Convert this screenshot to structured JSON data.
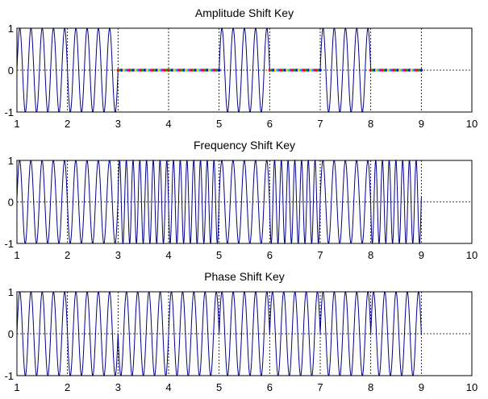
{
  "chart_data": [
    {
      "type": "line",
      "title": "Amplitude Shift Key",
      "xlim": [
        1,
        10
      ],
      "ylim": [
        -1,
        1
      ],
      "xticks": [
        "1",
        "2",
        "3",
        "4",
        "5",
        "6",
        "7",
        "8",
        "9",
        "10"
      ],
      "yticks": [
        "-1",
        "0",
        "1"
      ],
      "grid": true,
      "bits": [
        1,
        1,
        0,
        0,
        1,
        0,
        1,
        0
      ],
      "carrier": {
        "base_cycles_per_unit": 4.5
      },
      "signal_end": 9,
      "series": [
        {
          "color": "#00008b"
        }
      ],
      "zero_segment_colors": [
        "#ff0000",
        "#00aa00",
        "#0000ff",
        "#ffcc00",
        "#00cccc",
        "#cc00cc"
      ]
    },
    {
      "type": "line",
      "title": "Frequency Shift Key",
      "xlim": [
        1,
        10
      ],
      "ylim": [
        -1,
        1
      ],
      "xticks": [
        "1",
        "2",
        "3",
        "4",
        "5",
        "6",
        "7",
        "8",
        "9",
        "10"
      ],
      "yticks": [
        "-1",
        "0",
        "1"
      ],
      "grid": true,
      "bits": [
        1,
        1,
        0,
        0,
        1,
        0,
        1,
        0
      ],
      "carrier": {
        "cycles_per_unit_bit1": 4.5,
        "cycles_per_unit_bit0": 7.5
      },
      "signal_end": 9,
      "series": [
        {
          "color": "#00008b"
        }
      ]
    },
    {
      "type": "line",
      "title": "Phase Shift Key",
      "xlim": [
        1,
        10
      ],
      "ylim": [
        -1,
        1
      ],
      "xticks": [
        "1",
        "2",
        "3",
        "4",
        "5",
        "6",
        "7",
        "8",
        "9",
        "10"
      ],
      "yticks": [
        "-1",
        "0",
        "1"
      ],
      "grid": true,
      "bits": [
        1,
        1,
        0,
        0,
        1,
        0,
        1,
        0
      ],
      "carrier": {
        "base_cycles_per_unit": 4.5,
        "phase_bit0_deg": 180
      },
      "signal_end": 9,
      "series": [
        {
          "color": "#00008b"
        }
      ]
    }
  ]
}
